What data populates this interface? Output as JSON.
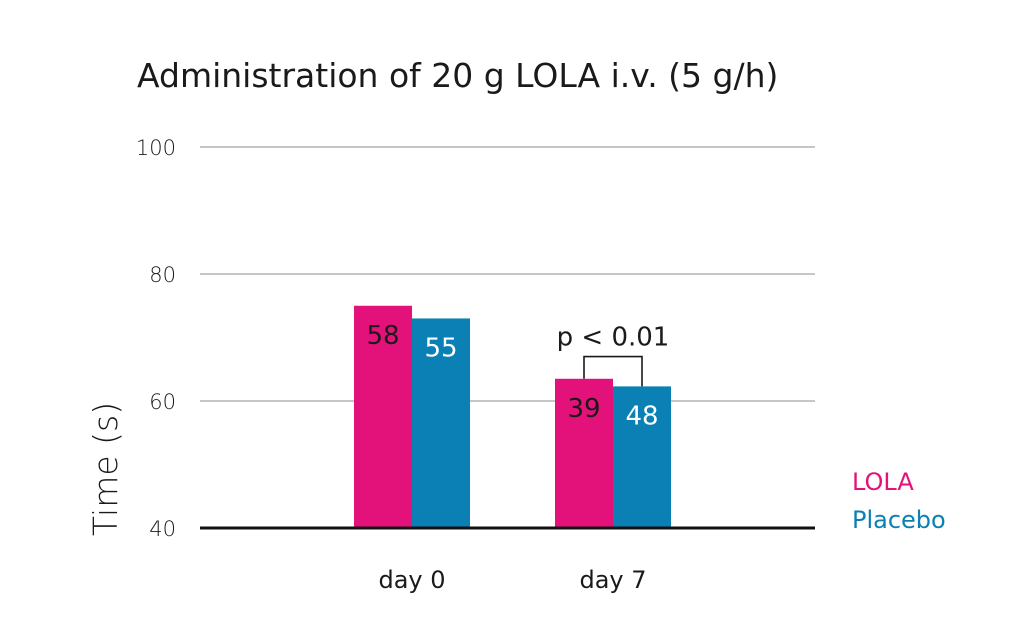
{
  "chart_data": {
    "type": "bar",
    "title": "Administration of 20 g LOLA i.v. (5 g/h)",
    "xlabel": "",
    "ylabel": "Time (s)",
    "ylim": [
      40,
      100
    ],
    "yticks": [
      "40",
      "60",
      "80",
      "100"
    ],
    "categories": [
      "day 0",
      "day 7"
    ],
    "series": [
      {
        "name": "LOLA",
        "values": [
          75,
          63.5
        ],
        "labels": [
          "58",
          "39"
        ],
        "color": "#e2127a"
      },
      {
        "name": "Placebo",
        "values": [
          73,
          62.3
        ],
        "labels": [
          "55",
          "48"
        ],
        "color": "#0a80b4"
      }
    ],
    "annotation": {
      "text": "p < 0.01",
      "category": "day 7"
    },
    "legend": {
      "position": "right",
      "entries": [
        "LOLA",
        "Placebo"
      ]
    }
  }
}
